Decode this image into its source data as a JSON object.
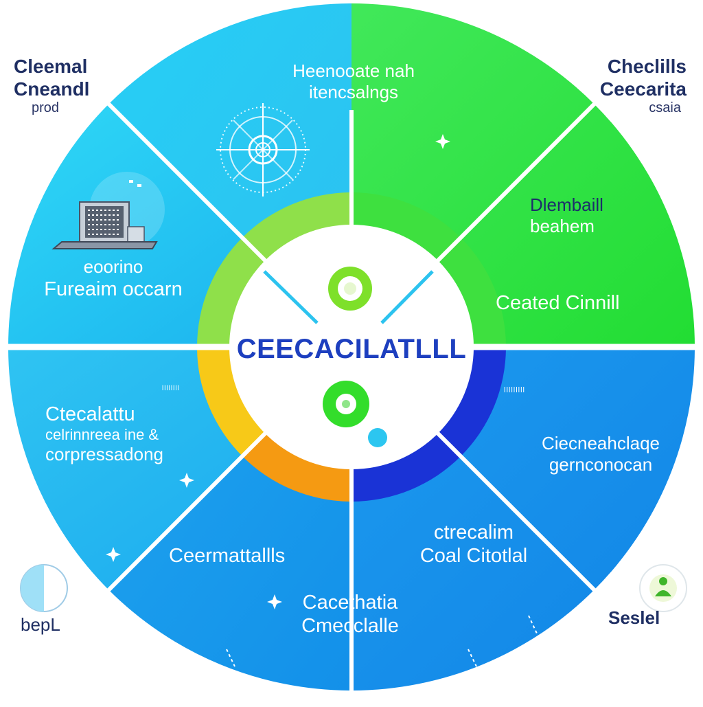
{
  "center": {
    "title": "CEECACILATLLL"
  },
  "segments": {
    "top": {
      "line1": "Heenooate nah",
      "line2": "itencsalngs"
    },
    "top_right": {
      "line1": "Dlembaill",
      "line2": "beahem",
      "line3": "Ceated Cinnill"
    },
    "upper_left": {
      "line1": "eoorino",
      "line2": "Fureaim occarn"
    },
    "left": {
      "line1": "Ctecalattu",
      "line2": "celrinnreea ine &",
      "line3": "corpressadong"
    },
    "right": {
      "line1": "Ciecneahclaqe",
      "line2": "gernconocan"
    },
    "bottom_left": {
      "line1": "Ceermattallls"
    },
    "bottom": {
      "line1": "Cacethatia",
      "line2": "Cmecclalle"
    },
    "bottom_right": {
      "line1": "ctrecalim",
      "line2": "Coal Citotlal"
    }
  },
  "corners": {
    "top_left": {
      "title1": "Cleemal",
      "title2": "Cneandl",
      "sub": "prod"
    },
    "top_right": {
      "title1": "Checlills",
      "title2": "Ceecarita",
      "sub": "csaia"
    },
    "bottom_left": {
      "label": "bepL"
    },
    "bottom_right": {
      "label": "Seslel"
    }
  },
  "tick_text": {
    "left": "llllllll",
    "right": "lllllllll"
  },
  "colors": {
    "cyan": "#2ec2f2",
    "green": "#2fe33a",
    "blue": "#1690ec",
    "lime": "#8fe04a",
    "yellow": "#f7c918",
    "orange": "#f59a12",
    "navy": "#1a33d6",
    "title": "#1d3fbf"
  },
  "icons": [
    "laptop-icon",
    "gauge-dial-icon",
    "green-ring-icon",
    "cyan-dot-icon",
    "half-circle-icon",
    "person-badge-icon",
    "sparkle-icon"
  ]
}
